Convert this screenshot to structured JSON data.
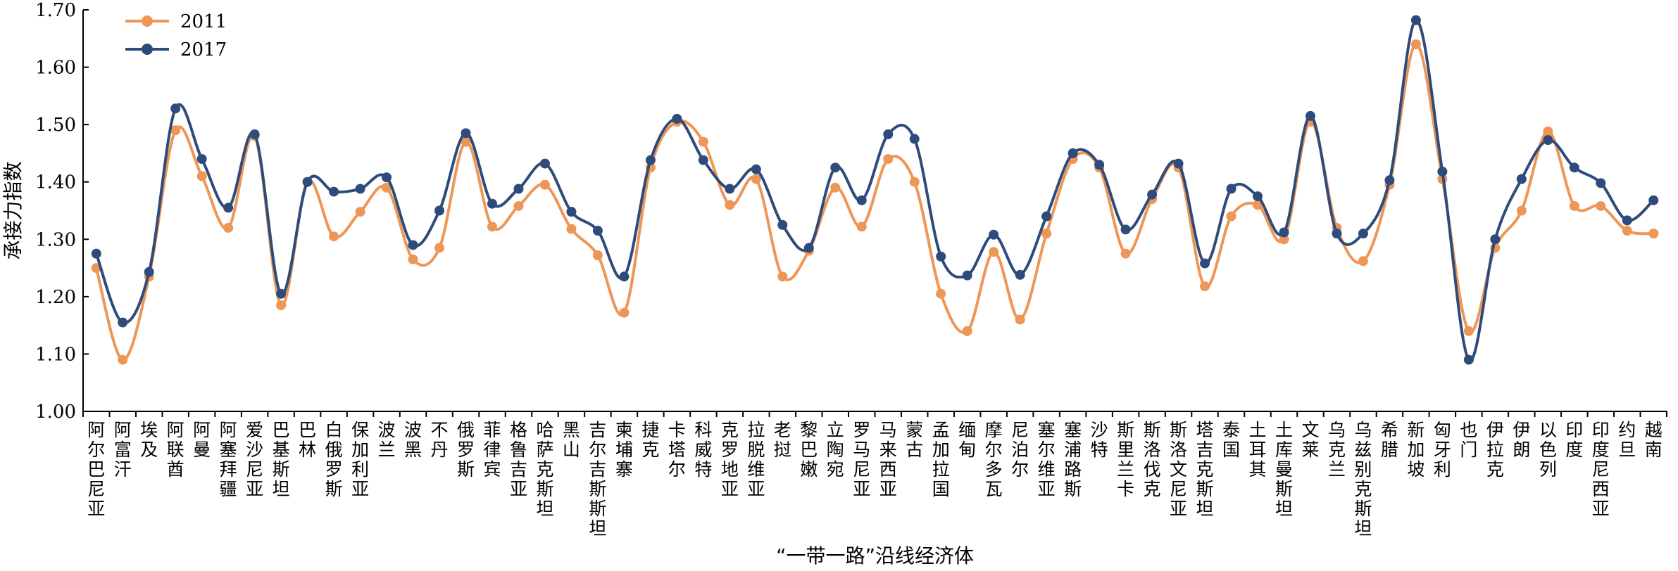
{
  "chart_data": {
    "type": "line",
    "title": "",
    "xlabel": "“一带一路”沿线经济体",
    "ylabel": "承接力指数",
    "ylim": [
      1.0,
      1.7
    ],
    "yticks": [
      "1.00",
      "1.10",
      "1.20",
      "1.30",
      "1.40",
      "1.50",
      "1.60",
      "1.70"
    ],
    "grid": false,
    "legend_position": "top-left",
    "categories": [
      "阿尔巴尼亚",
      "阿富汗",
      "埃及",
      "阿联酋",
      "阿曼",
      "阿塞拜疆",
      "爱沙尼亚",
      "巴基斯坦",
      "巴林",
      "白俄罗斯",
      "保加利亚",
      "波兰",
      "波黑",
      "不丹",
      "俄罗斯",
      "菲律宾",
      "格鲁吉亚",
      "哈萨克斯坦",
      "黑山",
      "吉尔吉斯斯坦",
      "柬埔寨",
      "捷克",
      "卡塔尔",
      "科威特",
      "克罗地亚",
      "拉脱维亚",
      "老挝",
      "黎巴嫩",
      "立陶宛",
      "罗马尼亚",
      "马来西亚",
      "蒙古",
      "孟加拉国",
      "缅甸",
      "摩尔多瓦",
      "尼泊尔",
      "塞尔维亚",
      "塞浦路斯",
      "沙特",
      "斯里兰卡",
      "斯洛伐克",
      "斯洛文尼亚",
      "塔吉克斯坦",
      "泰国",
      "土耳其",
      "土库曼斯坦",
      "文莱",
      "乌克兰",
      "乌兹别克斯坦",
      "希腊",
      "新加坡",
      "匈牙利",
      "也门",
      "伊拉克",
      "伊朗",
      "以色列",
      "印度",
      "印度尼西亚",
      "约旦",
      "越南"
    ],
    "series": [
      {
        "name": "2011",
        "color": "#EE9656",
        "values": [
          1.25,
          1.09,
          1.235,
          1.49,
          1.41,
          1.32,
          1.48,
          1.185,
          1.4,
          1.305,
          1.348,
          1.39,
          1.265,
          1.285,
          1.47,
          1.322,
          1.358,
          1.395,
          1.318,
          1.272,
          1.172,
          1.425,
          1.505,
          1.47,
          1.36,
          1.405,
          1.235,
          1.28,
          1.39,
          1.322,
          1.44,
          1.4,
          1.205,
          1.14,
          1.278,
          1.16,
          1.31,
          1.44,
          1.425,
          1.275,
          1.37,
          1.425,
          1.218,
          1.34,
          1.36,
          1.3,
          1.505,
          1.32,
          1.262,
          1.395,
          1.64,
          1.405,
          1.14,
          1.285,
          1.35,
          1.488,
          1.358,
          1.358,
          1.315,
          1.31
        ]
      },
      {
        "name": "2017",
        "color": "#2E4B7B",
        "values": [
          1.275,
          1.155,
          1.243,
          1.528,
          1.44,
          1.355,
          1.483,
          1.205,
          1.4,
          1.383,
          1.388,
          1.408,
          1.29,
          1.35,
          1.485,
          1.362,
          1.388,
          1.432,
          1.348,
          1.315,
          1.235,
          1.438,
          1.51,
          1.438,
          1.388,
          1.422,
          1.325,
          1.285,
          1.425,
          1.368,
          1.483,
          1.475,
          1.27,
          1.237,
          1.308,
          1.238,
          1.34,
          1.45,
          1.43,
          1.317,
          1.378,
          1.432,
          1.258,
          1.388,
          1.375,
          1.312,
          1.515,
          1.31,
          1.31,
          1.403,
          1.682,
          1.418,
          1.09,
          1.3,
          1.405,
          1.473,
          1.425,
          1.398,
          1.333,
          1.368
        ]
      }
    ]
  }
}
